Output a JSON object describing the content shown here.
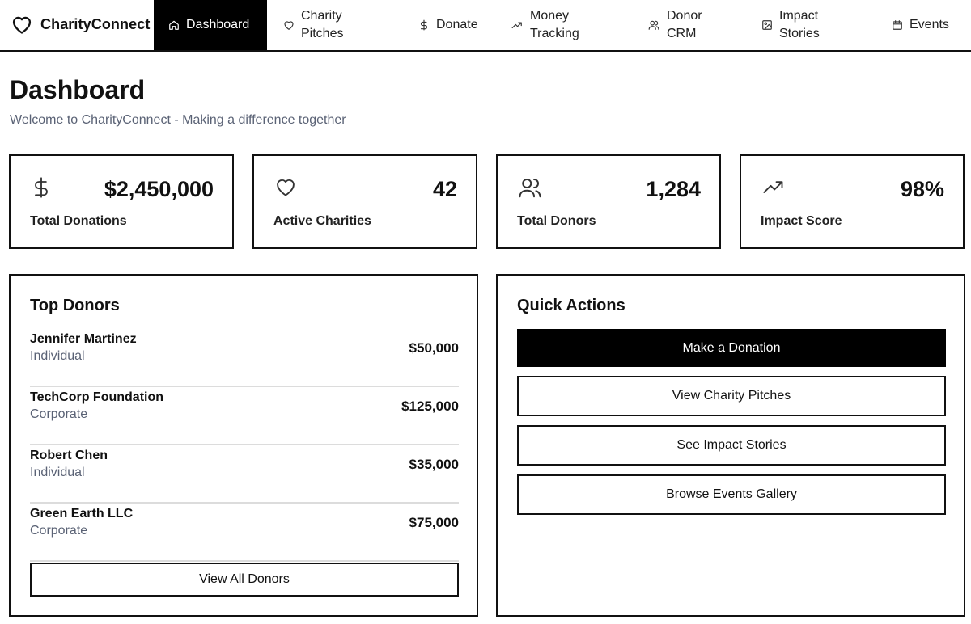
{
  "app": {
    "brand_name": "CharityConnect"
  },
  "nav": {
    "items": [
      {
        "label": "Dashboard",
        "icon": "home-icon"
      },
      {
        "label": "Charity Pitches",
        "icon": "heart-icon"
      },
      {
        "label": "Donate",
        "icon": "dollar-icon"
      },
      {
        "label": "Money Tracking",
        "icon": "trending-up-icon"
      },
      {
        "label": "Donor CRM",
        "icon": "users-icon"
      },
      {
        "label": "Impact Stories",
        "icon": "image-icon"
      },
      {
        "label": "Events",
        "icon": "calendar-icon"
      }
    ]
  },
  "header": {
    "title": "Dashboard",
    "subtitle": "Welcome to CharityConnect - Making a difference together"
  },
  "stats": [
    {
      "value": "$2,450,000",
      "label": "Total Donations",
      "icon": "dollar-icon"
    },
    {
      "value": "42",
      "label": "Active Charities",
      "icon": "heart-icon"
    },
    {
      "value": "1,284",
      "label": "Total Donors",
      "icon": "users-icon"
    },
    {
      "value": "98%",
      "label": "Impact Score",
      "icon": "trending-up-icon"
    }
  ],
  "top_donors": {
    "title": "Top Donors",
    "rows": [
      {
        "name": "Jennifer Martinez",
        "type": "Individual",
        "amount": "$50,000"
      },
      {
        "name": "TechCorp Foundation",
        "type": "Corporate",
        "amount": "$125,000"
      },
      {
        "name": "Robert Chen",
        "type": "Individual",
        "amount": "$35,000"
      },
      {
        "name": "Green Earth LLC",
        "type": "Corporate",
        "amount": "$75,000"
      }
    ],
    "view_all_label": "View All Donors"
  },
  "quick_actions": {
    "title": "Quick Actions",
    "buttons": [
      {
        "label": "Make a Donation"
      },
      {
        "label": "View Charity Pitches"
      },
      {
        "label": "See Impact Stories"
      },
      {
        "label": "Browse Events Gallery"
      }
    ]
  },
  "colors": {
    "primary": "#000000",
    "text": "#111111",
    "muted_text": "#5a6275",
    "divider": "#dcdcdc",
    "background": "#ffffff"
  }
}
